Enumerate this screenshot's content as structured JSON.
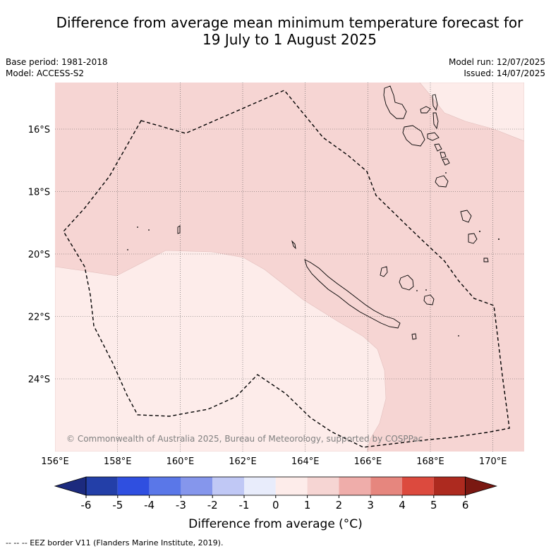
{
  "title": {
    "line1": "Difference from average mean minimum temperature forecast for",
    "line2": "19 July to 1 August 2025"
  },
  "meta": {
    "base_period": "Base period: 1981-2018",
    "model": "Model: ACCESS-S2",
    "model_run": "Model run: 12/07/2025",
    "issued": "Issued: 14/07/2025"
  },
  "map": {
    "copyright": "© Commonwealth of Australia 2025, Bureau of Meteorology, supported by COSPPac",
    "lon_ticks": [
      "156°E",
      "158°E",
      "160°E",
      "162°E",
      "164°E",
      "166°E",
      "168°E",
      "170°E"
    ],
    "lat_ticks": [
      "16°S",
      "18°S",
      "20°S",
      "22°S",
      "24°S"
    ],
    "legend_eez": "--  --  -- EEZ border V11 (Flanders Marine Institute, 2019)."
  },
  "colorbar": {
    "label": "Difference from average (°C)",
    "ticks": [
      "-6",
      "-5",
      "-4",
      "-3",
      "-2",
      "-1",
      "0",
      "1",
      "2",
      "3",
      "4",
      "5",
      "6"
    ],
    "colors": [
      "#1c2a7e",
      "#233fa8",
      "#2f4fe0",
      "#5a77e8",
      "#8596ec",
      "#c0c8f5",
      "#e8ecfb",
      "#fdecea",
      "#f6d5d3",
      "#efadaa",
      "#e6867e",
      "#dc4a3e",
      "#ad2a1f",
      "#7a1812"
    ],
    "region_colors": {
      "0_to_1": "#fdecea",
      "1_to_2": "#f6d5d3"
    }
  }
}
